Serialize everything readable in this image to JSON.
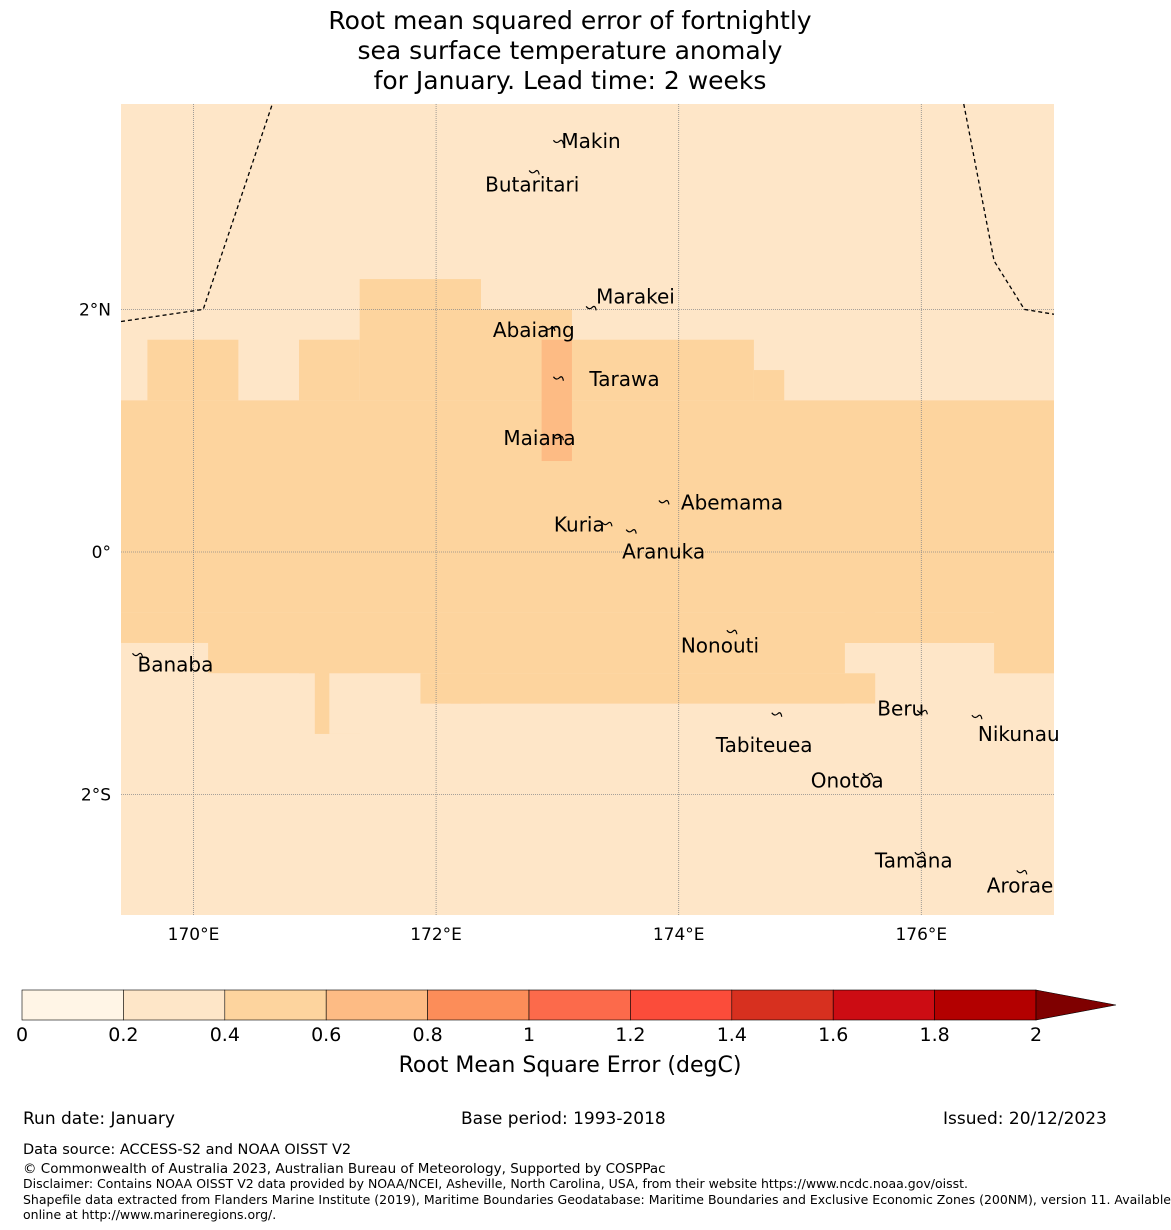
{
  "title": {
    "line1": "Root mean squared error of fortnightly",
    "line2": "sea surface temperature anomaly",
    "line3": "for January. Lead time: 2 weeks"
  },
  "map": {
    "lon_range": [
      169.4,
      177.1
    ],
    "lat_range": [
      -3.0,
      3.7
    ],
    "lon_ticks": [
      {
        "value": 170,
        "label": "170°E"
      },
      {
        "value": 172,
        "label": "172°E"
      },
      {
        "value": 174,
        "label": "174°E"
      },
      {
        "value": 176,
        "label": "176°E"
      }
    ],
    "lat_ticks": [
      {
        "value": 2,
        "label": "2°N"
      },
      {
        "value": 0,
        "label": "0°"
      },
      {
        "value": -2,
        "label": "2°S"
      }
    ],
    "background_class": "0.2-0.4",
    "cells_04_06": [
      [
        169.4,
        177.1,
        -0.5,
        1.25
      ],
      [
        169.62,
        170.37,
        1.25,
        1.75
      ],
      [
        170.87,
        171.37,
        1.25,
        1.75
      ],
      [
        171.37,
        172.37,
        1.25,
        2.25
      ],
      [
        172.37,
        173.12,
        1.25,
        2.0
      ],
      [
        173.12,
        174.62,
        1.25,
        1.75
      ],
      [
        174.62,
        174.87,
        1.25,
        1.5
      ],
      [
        169.62,
        169.62,
        0,
        0
      ],
      [
        169.4,
        177.1,
        -0.75,
        -0.5
      ],
      [
        170.12,
        175.37,
        -1.0,
        -0.75
      ],
      [
        171.87,
        175.62,
        -1.25,
        -1.0
      ],
      [
        175.37,
        175.62,
        -0.75,
        -0.5
      ]
    ],
    "cells_06_08": [
      [
        172.87,
        173.12,
        0.75,
        1.75
      ]
    ],
    "boundary_west": [
      [
        169.4,
        1.9
      ],
      [
        170.08,
        2.0
      ],
      [
        170.65,
        3.7
      ]
    ],
    "boundary_east": [
      [
        176.35,
        3.7
      ],
      [
        176.6,
        2.4
      ],
      [
        176.85,
        2.0
      ],
      [
        177.1,
        1.96
      ]
    ],
    "islands": [
      {
        "name": "Makin",
        "lon": 173.0,
        "lat": 3.37,
        "label_dx": 4,
        "label_dy": -1
      },
      {
        "name": "Butaritari",
        "lon": 172.8,
        "lat": 3.12,
        "label_dx": -48,
        "label_dy": 12
      },
      {
        "name": "Marakei",
        "lon": 173.27,
        "lat": 2.0,
        "label_dx": 6,
        "label_dy": -12
      },
      {
        "name": "Abaiang",
        "lon": 172.93,
        "lat": 1.83,
        "label_dx": -56,
        "label_dy": 1
      },
      {
        "name": "Tarawa",
        "lon": 173.0,
        "lat": 1.42,
        "label_dx": 32,
        "label_dy": 0
      },
      {
        "name": "Maiana",
        "lon": 173.0,
        "lat": 0.93,
        "label_dx": -54,
        "label_dy": 0
      },
      {
        "name": "Abemama",
        "lon": 173.87,
        "lat": 0.4,
        "label_dx": 18,
        "label_dy": 0
      },
      {
        "name": "Kuria",
        "lon": 173.4,
        "lat": 0.22,
        "label_dx": -52,
        "label_dy": 0
      },
      {
        "name": "Aranuka",
        "lon": 173.6,
        "lat": 0.16,
        "label_dx": -8,
        "label_dy": 20
      },
      {
        "name": "Nonouti",
        "lon": 174.43,
        "lat": -0.67,
        "label_dx": -50,
        "label_dy": 13
      },
      {
        "name": "Banaba",
        "lon": 169.53,
        "lat": -0.86,
        "label_dx": 1,
        "label_dy": 9
      },
      {
        "name": "Tabiteuea",
        "lon": 174.8,
        "lat": -1.35,
        "label_dx": -60,
        "label_dy": 30
      },
      {
        "name": "Beru",
        "lon": 176.0,
        "lat": -1.33,
        "label_dx": -44,
        "label_dy": -4
      },
      {
        "name": "Nikunau",
        "lon": 176.45,
        "lat": -1.37,
        "label_dx": 2,
        "label_dy": 17
      },
      {
        "name": "Onotoa",
        "lon": 175.55,
        "lat": -1.85,
        "label_dx": -56,
        "label_dy": 5
      },
      {
        "name": "Tamana",
        "lon": 175.98,
        "lat": -2.5,
        "label_dx": -44,
        "label_dy": 6
      },
      {
        "name": "Arorae",
        "lon": 176.82,
        "lat": -2.65,
        "label_dx": -34,
        "label_dy": 13
      }
    ]
  },
  "colorbar": {
    "ticks": [
      "0",
      "0.2",
      "0.4",
      "0.6",
      "0.8",
      "1",
      "1.2",
      "1.4",
      "1.6",
      "1.8",
      "2"
    ],
    "colors": [
      "#fff5e6",
      "#fee6c8",
      "#fdd49e",
      "#fdbb84",
      "#fc8d59",
      "#fc6a4b",
      "#fb4c3a",
      "#d7301f",
      "#cc0c13",
      "#b30000"
    ],
    "extend_color": "#7f0000",
    "label": "Root Mean Square Error (degC)"
  },
  "footer": {
    "run_date": "Run date: January",
    "base_period": "Base period: 1993-2018",
    "issued": "Issued: 20/12/2023",
    "data_source": "Data source: ACCESS-S2 and NOAA OISST V2",
    "copyright": "© Commonwealth of Australia 2023, Australian Bureau of Meteorology, Supported by COSPPac",
    "disclaimer": "Disclaimer: Contains NOAA OISST V2 data provided by NOAA/NCEI, Asheville, North Carolina, USA, from their website https://www.ncdc.noaa.gov/oisst.",
    "shapefile1": "Shapefile data extracted from Flanders Marine Institute (2019), Maritime Boundaries Geodatabase: Maritime Boundaries and Exclusive Economic Zones (200NM), version 11. Available",
    "shapefile2": "online at http://www.marineregions.org/."
  }
}
